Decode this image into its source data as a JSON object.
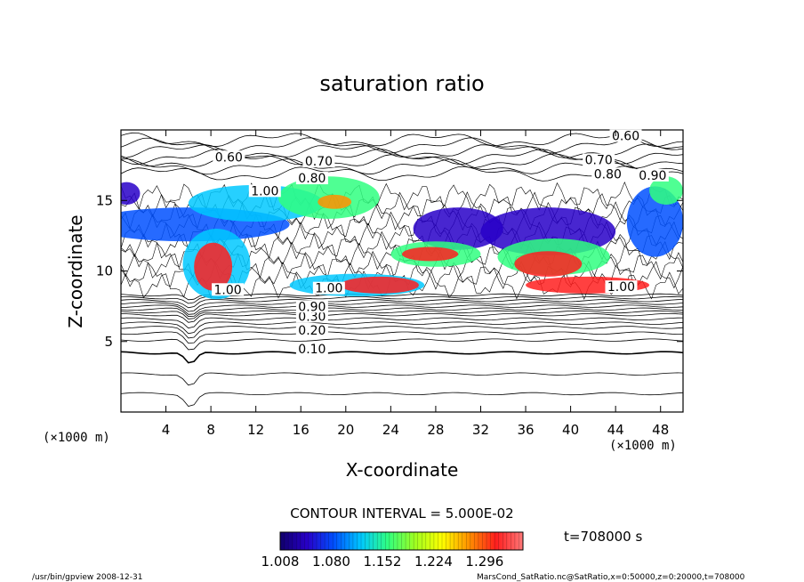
{
  "chart_data": {
    "type": "heatmap",
    "title": "saturation ratio",
    "xlabel": "X-coordinate",
    "ylabel": "Z-coordinate",
    "x_unit": "(×1000 m)",
    "y_unit": "(×1000 m)",
    "xlim": [
      0,
      50
    ],
    "ylim": [
      0,
      20
    ],
    "x_ticks": [
      "4",
      "8",
      "12",
      "16",
      "20",
      "24",
      "28",
      "32",
      "36",
      "40",
      "44",
      "48"
    ],
    "y_ticks": [
      "5",
      "10",
      "15"
    ],
    "contour_interval": "CONTOUR INTERVAL = 5.000E-02",
    "contour_labels": [
      {
        "text": "0.10",
        "x": 17.0,
        "y": 4.3
      },
      {
        "text": "0.20",
        "x": 17.0,
        "y": 5.6
      },
      {
        "text": "0.30",
        "x": 17.0,
        "y": 6.6
      },
      {
        "text": "0.90",
        "x": 17.0,
        "y": 7.3
      },
      {
        "text": "1.00",
        "x": 9.5,
        "y": 8.5
      },
      {
        "text": "1.00",
        "x": 18.5,
        "y": 8.6
      },
      {
        "text": "1.00",
        "x": 44.5,
        "y": 8.7
      },
      {
        "text": "0.60",
        "x": 9.6,
        "y": 17.9
      },
      {
        "text": "0.70",
        "x": 17.6,
        "y": 17.6
      },
      {
        "text": "0.80",
        "x": 17.0,
        "y": 16.4
      },
      {
        "text": "1.00",
        "x": 12.8,
        "y": 15.5
      },
      {
        "text": "0.60",
        "x": 44.9,
        "y": 19.4
      },
      {
        "text": "0.70",
        "x": 42.5,
        "y": 17.7
      },
      {
        "text": "0.80",
        "x": 43.3,
        "y": 16.7
      },
      {
        "text": "0.90",
        "x": 47.3,
        "y": 16.6
      }
    ],
    "colorbar": {
      "ticks": [
        "1.008",
        "1.080",
        "1.152",
        "1.224",
        "1.296"
      ],
      "range": [
        1.008,
        1.35
      ],
      "colors": [
        "#10006b",
        "#2800c8",
        "#0050ff",
        "#00c8ff",
        "#30ff80",
        "#a0ff20",
        "#ffff00",
        "#ff9000",
        "#ff1e1e",
        "#ff7878"
      ]
    },
    "time_label": "t=708000  s"
  },
  "footer": {
    "left": "/usr/bin/gpview   2008-12-31",
    "right": "MarsCond_SatRatio.nc@SatRatio,x=0:50000,z=0:20000,t=708000"
  }
}
